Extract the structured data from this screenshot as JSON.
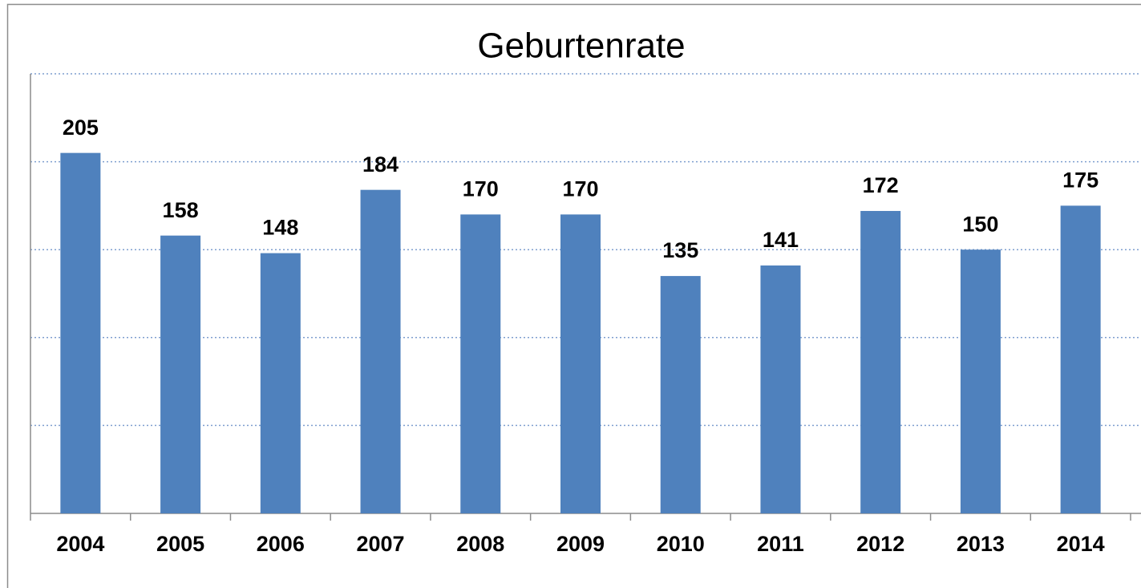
{
  "chart_data": {
    "type": "bar",
    "title": "Geburtenrate",
    "categories": [
      "2004",
      "2005",
      "2006",
      "2007",
      "2008",
      "2009",
      "2010",
      "2011",
      "2012",
      "2013",
      "2014"
    ],
    "values": [
      205,
      158,
      148,
      184,
      170,
      170,
      135,
      141,
      172,
      150,
      175
    ],
    "color": "#4f81bd",
    "ylim": [
      0,
      250
    ],
    "yticks": [
      0,
      50,
      100,
      150,
      200,
      250
    ],
    "grid": true
  }
}
